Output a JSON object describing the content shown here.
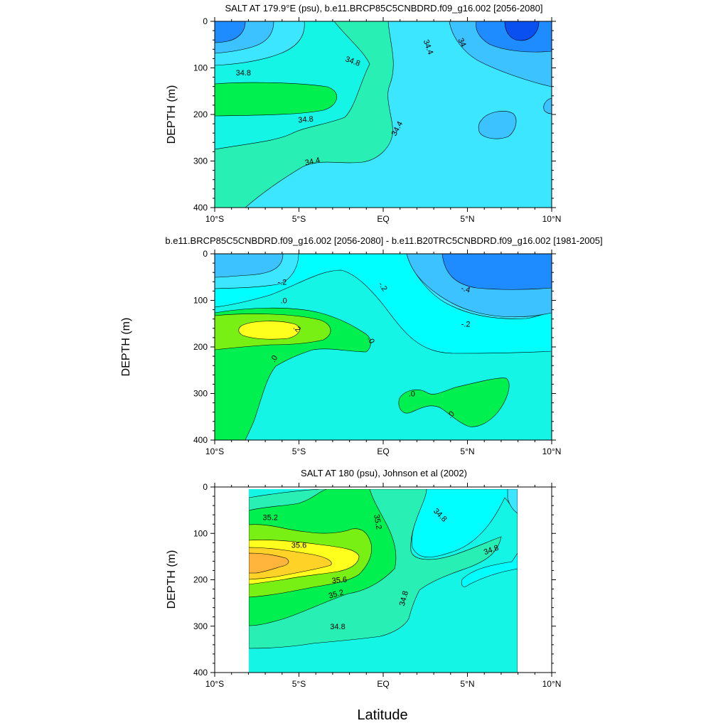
{
  "figure": {
    "xlabel": "Latitude"
  },
  "palette": {
    "deep_blue": "#0a50f0",
    "blue": "#1e8cff",
    "sky": "#3cc3ff",
    "light_cyan": "#3ce6ff",
    "cyan": "#00ffff",
    "aqua": "#14f5e6",
    "mint": "#28f0b4",
    "green": "#00f050",
    "lime": "#78f014",
    "yellow": "#ffff1e",
    "gold": "#ffd228",
    "orange": "#ffb43c"
  },
  "chart_data": [
    {
      "type": "contour",
      "title": "SALT AT 179.9°E (psu), b.e11.BRCP85C5CNBDRD.f09_g16.002 [2056-2080]",
      "ylabel": "DEPTH (m)",
      "xlim": [
        -10,
        10
      ],
      "ylim": [
        0,
        400
      ],
      "y_inverted": true,
      "x_ticks": [
        -10,
        -5,
        0,
        5,
        10
      ],
      "x_tick_labels": [
        "10°S",
        "5°S",
        "EQ",
        "5°N",
        "10°N"
      ],
      "y_ticks": [
        0,
        100,
        200,
        300,
        400
      ],
      "y_tick_labels": [
        "0",
        "100",
        "200",
        "300",
        "400"
      ],
      "contour_labels": [
        {
          "text": "34.8",
          "lat": -8.3,
          "depth": 110,
          "angle": 0
        },
        {
          "text": "34.8",
          "lat": -1.8,
          "depth": 85,
          "angle": 20
        },
        {
          "text": "34.8",
          "lat": -4.6,
          "depth": 210,
          "angle": -5
        },
        {
          "text": "34.4",
          "lat": -4.2,
          "depth": 300,
          "angle": -12
        },
        {
          "text": "34.4",
          "lat": 2.7,
          "depth": 55,
          "angle": 70
        },
        {
          "text": "34.4",
          "lat": 0.8,
          "depth": 230,
          "angle": -62
        },
        {
          "text": "34",
          "lat": 4.7,
          "depth": 45,
          "angle": 65
        }
      ]
    },
    {
      "type": "contour",
      "title": "b.e11.BRCP85C5CNBDRD.f09_g16.002 [2056-2080] - b.e11.B20TRC5CNBDRD.f09_g16.002 [1981-2005]",
      "ylabel": "DEPTH (m)",
      "xlim": [
        -10,
        10
      ],
      "ylim": [
        0,
        400
      ],
      "y_inverted": true,
      "x_ticks": [
        -10,
        -5,
        0,
        5,
        10
      ],
      "x_tick_labels": [
        "10°S",
        "5°S",
        "EQ",
        "5°N",
        "10°N"
      ],
      "y_ticks": [
        0,
        100,
        200,
        300,
        400
      ],
      "y_tick_labels": [
        "0",
        "100",
        "200",
        "300",
        "400"
      ],
      "contour_labels": [
        {
          "text": "-.2",
          "lat": -6.0,
          "depth": 60,
          "angle": 0
        },
        {
          "text": "-.2",
          "lat": 0.0,
          "depth": 70,
          "angle": 55
        },
        {
          "text": "-.4",
          "lat": 4.9,
          "depth": 75,
          "angle": 15
        },
        {
          "text": "-.2",
          "lat": 4.9,
          "depth": 150,
          "angle": 0
        },
        {
          "text": ".0",
          "lat": -5.9,
          "depth": 100,
          "angle": 0
        },
        {
          "text": ".2",
          "lat": -5.1,
          "depth": 160,
          "angle": 45
        },
        {
          "text": ".0",
          "lat": -0.7,
          "depth": 185,
          "angle": 65
        },
        {
          "text": ".0",
          "lat": -6.5,
          "depth": 225,
          "angle": -60
        },
        {
          "text": ".0",
          "lat": 1.7,
          "depth": 300,
          "angle": 0
        },
        {
          "text": ".0",
          "lat": 4.0,
          "depth": 345,
          "angle": -45
        }
      ]
    },
    {
      "type": "contour",
      "title": "SALT AT 180 (psu), Johnson et al (2002)",
      "ylabel": "DEPTH (m)",
      "xlim": [
        -10,
        10
      ],
      "ylim": [
        0,
        400
      ],
      "y_inverted": true,
      "data_extent_lat": [
        -8,
        8
      ],
      "x_ticks": [
        -10,
        -5,
        0,
        5,
        10
      ],
      "x_tick_labels": [
        "10°S",
        "5°S",
        "EQ",
        "5°N",
        "10°N"
      ],
      "y_ticks": [
        0,
        100,
        200,
        300,
        400
      ],
      "y_tick_labels": [
        "0",
        "100",
        "200",
        "300",
        "400"
      ],
      "contour_labels": [
        {
          "text": "35.2",
          "lat": -6.7,
          "depth": 65,
          "angle": 0
        },
        {
          "text": "35.2",
          "lat": -0.3,
          "depth": 75,
          "angle": 80
        },
        {
          "text": "35.6",
          "lat": -5.0,
          "depth": 125,
          "angle": 0
        },
        {
          "text": "35.6",
          "lat": -2.6,
          "depth": 200,
          "angle": -5
        },
        {
          "text": "35.2",
          "lat": -2.8,
          "depth": 230,
          "angle": -15
        },
        {
          "text": "34.8",
          "lat": 3.4,
          "depth": 60,
          "angle": 45
        },
        {
          "text": "34.8",
          "lat": 6.4,
          "depth": 135,
          "angle": -20
        },
        {
          "text": "34.8",
          "lat": 1.2,
          "depth": 240,
          "angle": -75
        },
        {
          "text": "34.8",
          "lat": -2.7,
          "depth": 300,
          "angle": 0
        }
      ]
    }
  ]
}
